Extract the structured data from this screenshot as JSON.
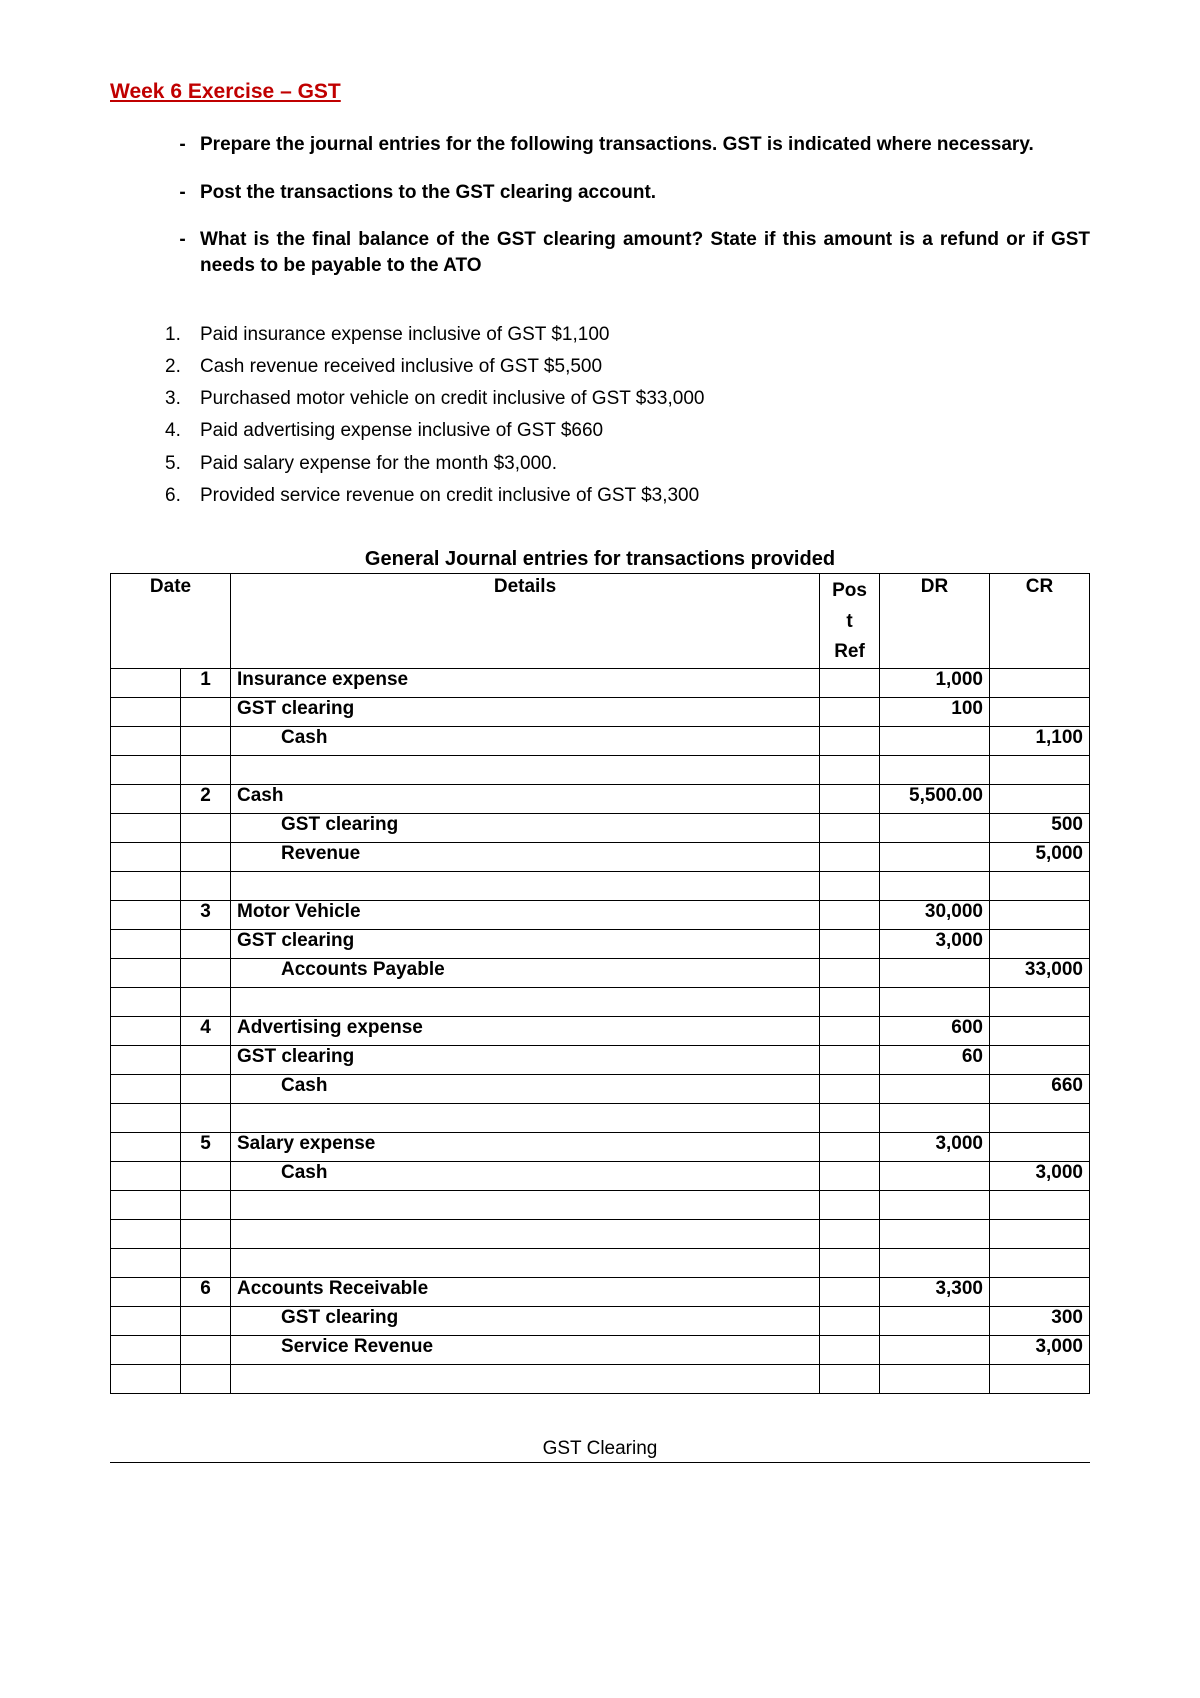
{
  "title": "Week 6 Exercise – GST",
  "title_color": "#c00000",
  "instructions": [
    "Prepare the journal entries for the following transactions. GST is indicated where necessary.",
    "Post the transactions to the GST clearing account.",
    "What is the final balance of the GST clearing amount? State if this amount is a refund or if GST needs to be payable to the ATO"
  ],
  "numbered_items": [
    "Paid insurance expense inclusive of GST $1,100",
    "Cash revenue received inclusive of GST $5,500",
    "Purchased motor vehicle on credit inclusive of GST $33,000",
    "Paid advertising expense inclusive of GST $660",
    "Paid salary expense for the month $3,000.",
    "Provided service revenue on credit inclusive of GST $3,300"
  ],
  "table_title": "General Journal entries for transactions provided",
  "headers": {
    "date": "Date",
    "details": "Details",
    "post_ref": "Pos t Ref",
    "dr": "DR",
    "cr": "CR"
  },
  "rows": [
    {
      "num": "1",
      "detail": "Insurance expense",
      "indent": 0,
      "dr": "1,000",
      "cr": ""
    },
    {
      "num": "",
      "detail": "GST clearing",
      "indent": 0,
      "dr": "100",
      "cr": ""
    },
    {
      "num": "",
      "detail": "Cash",
      "indent": 1,
      "dr": "",
      "cr": "1,100"
    },
    {
      "num": "",
      "detail": "",
      "indent": 0,
      "dr": "",
      "cr": ""
    },
    {
      "num": "2",
      "detail": "Cash",
      "indent": 0,
      "dr": "5,500.00",
      "cr": ""
    },
    {
      "num": "",
      "detail": "GST clearing",
      "indent": 1,
      "dr": "",
      "cr": "500"
    },
    {
      "num": "",
      "detail": "Revenue",
      "indent": 1,
      "dr": "",
      "cr": "5,000"
    },
    {
      "num": "",
      "detail": "",
      "indent": 0,
      "dr": "",
      "cr": ""
    },
    {
      "num": "3",
      "detail": "Motor Vehicle",
      "indent": 0,
      "dr": "30,000",
      "cr": ""
    },
    {
      "num": "",
      "detail": "GST clearing",
      "indent": 0,
      "dr": "3,000",
      "cr": ""
    },
    {
      "num": "",
      "detail": "Accounts Payable",
      "indent": 1,
      "dr": "",
      "cr": "33,000"
    },
    {
      "num": "",
      "detail": "",
      "indent": 0,
      "dr": "",
      "cr": ""
    },
    {
      "num": "4",
      "detail": "Advertising expense",
      "indent": 0,
      "dr": "600",
      "cr": ""
    },
    {
      "num": "",
      "detail": "GST clearing",
      "indent": 0,
      "dr": "60",
      "cr": ""
    },
    {
      "num": "",
      "detail": "Cash",
      "indent": 1,
      "dr": "",
      "cr": "660"
    },
    {
      "num": "",
      "detail": "",
      "indent": 0,
      "dr": "",
      "cr": ""
    },
    {
      "num": "5",
      "detail": "Salary expense",
      "indent": 0,
      "dr": "3,000",
      "cr": ""
    },
    {
      "num": "",
      "detail": "Cash",
      "indent": 1,
      "dr": "",
      "cr": "3,000"
    },
    {
      "num": "",
      "detail": "",
      "indent": 0,
      "dr": "",
      "cr": ""
    },
    {
      "num": "",
      "detail": "",
      "indent": 0,
      "dr": "",
      "cr": ""
    },
    {
      "num": "",
      "detail": "",
      "indent": 0,
      "dr": "",
      "cr": ""
    },
    {
      "num": "6",
      "detail": "Accounts Receivable",
      "indent": 0,
      "dr": "3,300",
      "cr": ""
    },
    {
      "num": "",
      "detail": "GST clearing",
      "indent": 1,
      "dr": "",
      "cr": "300"
    },
    {
      "num": "",
      "detail": "Service Revenue",
      "indent": 1,
      "dr": "",
      "cr": "3,000"
    },
    {
      "num": "",
      "detail": "",
      "indent": 0,
      "dr": "",
      "cr": ""
    }
  ],
  "footer_title": "GST Clearing"
}
